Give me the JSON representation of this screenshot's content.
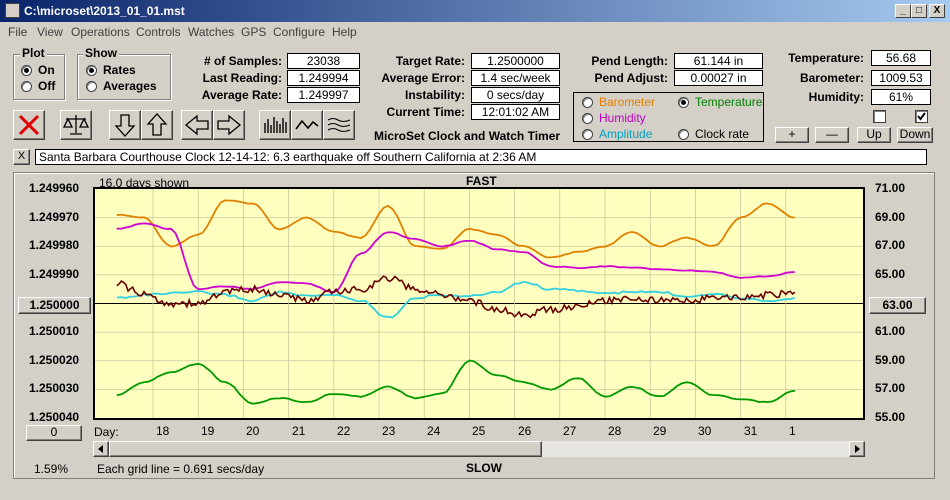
{
  "window": {
    "title": "C:\\microset\\2013_01_01.mst",
    "btn_min": "_",
    "btn_max": "□",
    "btn_close": "X"
  },
  "menu": [
    "File",
    "View",
    "Operations",
    "Controls",
    "Watches",
    "GPS",
    "Configure",
    "Help"
  ],
  "plot_group": {
    "label": "Plot",
    "on": "On",
    "off": "Off"
  },
  "show_group": {
    "label": "Show",
    "rates": "Rates",
    "averages": "Averages"
  },
  "fields": {
    "samples_label": "# of Samples:",
    "samples": "23038",
    "last_label": "Last Reading:",
    "last": "1.249994",
    "avg_label": "Average Rate:",
    "avg": "1.249997",
    "target_label": "Target Rate:",
    "target": "1.2500000",
    "err_label": "Average Error:",
    "err": "1.4 sec/week",
    "inst_label": "Instability:",
    "inst": "0 secs/day",
    "time_label": "Current Time:",
    "time": "12:01:02 AM",
    "pendlen_label": "Pend Length:",
    "pendlen": "61.144 in",
    "pendadj_label": "Pend Adjust:",
    "pendadj": "0.00027 in",
    "temp_label": "Temperature:",
    "temp": "56.68",
    "baro_label": "Barometer:",
    "baro": "1009.53",
    "hum_label": "Humidity:",
    "hum": "61%"
  },
  "app_caption": "MicroSet Clock and Watch Timer",
  "sensors": {
    "barometer": "Barometer",
    "temperature": "Temperature",
    "humidity": "Humidity",
    "amplitude": "Amplitude",
    "clock_rate": "Clock rate",
    "colors": {
      "barometer": "#e08000",
      "temperature": "#008000",
      "humidity": "#c000c0",
      "amplitude": "#00b0d0",
      "clock_rate": "#000000"
    }
  },
  "adjust_buttons": {
    "plus": "+",
    "minus": "—",
    "up": "Up",
    "down": "Down"
  },
  "note": {
    "close": "X",
    "text": "Santa Barbara Courthouse Clock       12-14-12: 6.3 earthquake off Southern California at 2:36 AM"
  },
  "chart_header": {
    "days_shown": "16.0 days shown",
    "fast": "FAST",
    "slow": "SLOW",
    "grid_note": "Each grid line = 0.691 secs/day",
    "percent": "1.59%",
    "day_label": "Day:",
    "left_value_button": "1.250000",
    "right_value_button": "63.00",
    "zero_button": "0"
  },
  "chart_data": {
    "type": "line",
    "x_ticks": [
      "18",
      "19",
      "20",
      "21",
      "22",
      "23",
      "24",
      "25",
      "26",
      "27",
      "28",
      "29",
      "30",
      "31",
      "1"
    ],
    "y_left_ticks": [
      "1.249960",
      "1.249970",
      "1.249980",
      "1.249990",
      "1.250000",
      "1.250010",
      "1.250020",
      "1.250030",
      "1.250040"
    ],
    "y_right_ticks": [
      "71.00",
      "69.00",
      "67.00",
      "65.00",
      "63.00",
      "61.00",
      "59.00",
      "57.00",
      "55.00"
    ],
    "ylim_left": [
      1.24996,
      1.25004
    ],
    "ylim_right": [
      55,
      71
    ],
    "x": [
      17.2,
      17.8,
      18.4,
      19.0,
      19.6,
      20.2,
      20.8,
      21.4,
      22.0,
      22.6,
      23.2,
      23.8,
      24.4,
      25.0,
      25.6,
      26.2,
      26.8,
      27.4,
      28.0,
      28.6,
      29.2,
      29.8,
      30.4,
      31.0,
      31.6,
      32.2
    ],
    "series": [
      {
        "name": "Barometer",
        "color": "#e08000",
        "values": [
          69.2,
          69.0,
          67.0,
          67.8,
          70.2,
          70.0,
          68.2,
          69.0,
          68.0,
          67.6,
          69.8,
          67.0,
          66.8,
          68.2,
          67.8,
          67.0,
          66.2,
          66.6,
          67.0,
          68.0,
          67.0,
          67.6,
          67.0,
          69.0,
          70.0,
          69.0
        ]
      },
      {
        "name": "Temperature",
        "color": "#009900",
        "values": [
          56.6,
          57.5,
          58.2,
          58.8,
          57.5,
          56.0,
          56.4,
          56.1,
          56.7,
          56.5,
          57.2,
          56.4,
          56.7,
          59.0,
          58.0,
          57.5,
          57.0,
          57.8,
          56.5,
          57.2,
          56.5,
          57.5,
          56.6,
          56.3,
          56.1,
          56.9
        ]
      },
      {
        "name": "Humidity",
        "color": "#d000d0",
        "values": [
          68.2,
          68.6,
          68.2,
          64.0,
          64.2,
          64.0,
          64.5,
          64.4,
          63.8,
          66.5,
          68.0,
          67.5,
          67.0,
          67.4,
          66.8,
          66.6,
          65.6,
          65.5,
          65.6,
          65.5,
          65.4,
          65.3,
          65.2,
          64.8,
          64.9,
          65.2
        ]
      },
      {
        "name": "Amplitude",
        "color": "#30d0e0",
        "values": [
          63.4,
          63.6,
          63.7,
          63.8,
          63.6,
          63.2,
          63.8,
          63.5,
          63.6,
          63.2,
          62.0,
          63.4,
          63.6,
          63.5,
          63.8,
          64.5,
          64.0,
          63.9,
          63.7,
          63.8,
          63.8,
          63.5,
          63.7,
          63.4,
          63.2,
          63.4
        ]
      },
      {
        "name": "Clock rate",
        "color": "#6a0000",
        "values": [
          1.249993,
          1.249997,
          1.25,
          1.25,
          1.249996,
          1.249995,
          1.249997,
          1.249999,
          1.249996,
          1.249995,
          1.249991,
          1.249995,
          1.249997,
          1.249999,
          1.250002,
          1.250004,
          1.250002,
          1.250001,
          1.249999,
          1.249998,
          1.249999,
          1.249999,
          1.249998,
          1.249998,
          1.249997,
          1.249996
        ]
      }
    ]
  }
}
